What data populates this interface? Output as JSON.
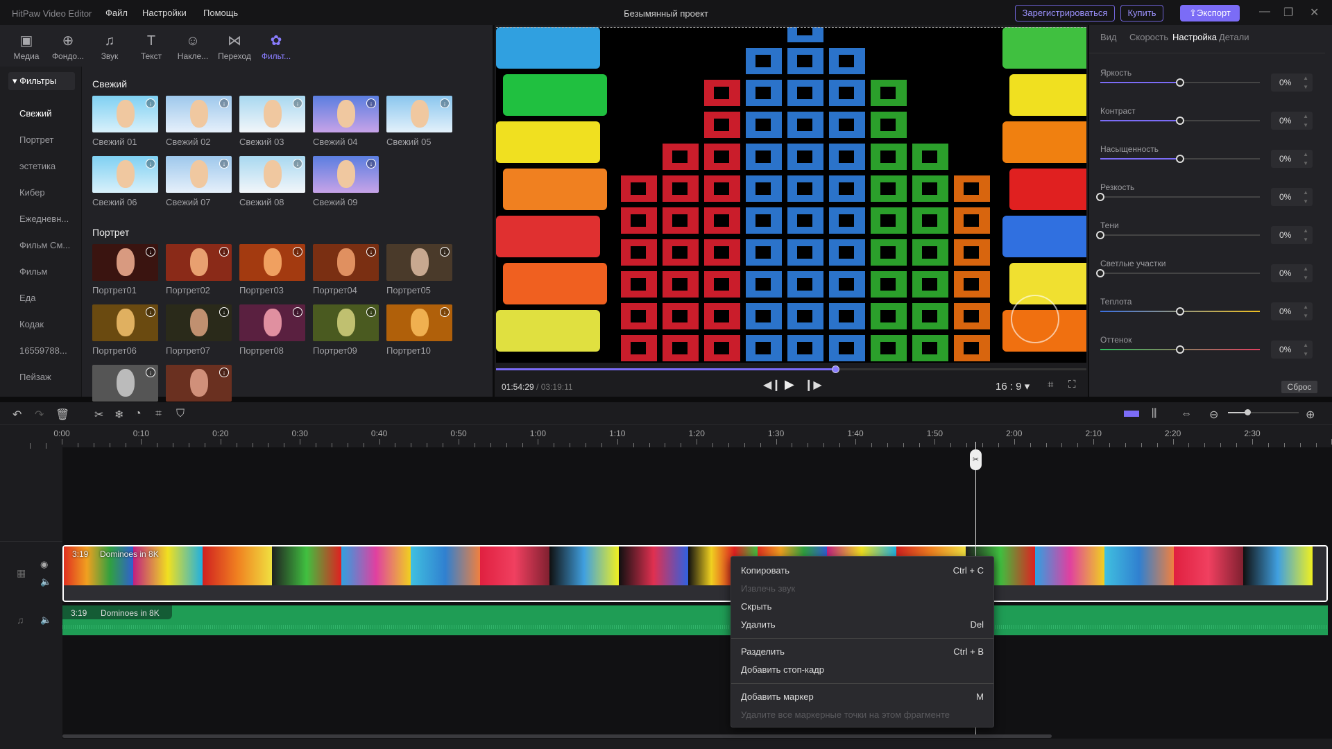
{
  "titlebar": {
    "app": "HitPaw Video Editor",
    "menus": [
      "Файл",
      "Настройки",
      "Помощь"
    ],
    "project": "Безымянный проект",
    "register": "Зарегистрироваться",
    "buy": "Купить",
    "export": "Экспорт",
    "icons": [
      "minimize-icon",
      "restore-icon",
      "close-icon"
    ]
  },
  "toolbar": {
    "tabs": [
      {
        "label": "Медиа",
        "icon": "media-icon"
      },
      {
        "label": "Фондо...",
        "icon": "globe-icon"
      },
      {
        "label": "Звук",
        "icon": "music-icon"
      },
      {
        "label": "Текст",
        "icon": "text-icon"
      },
      {
        "label": "Накле...",
        "icon": "sticker-icon"
      },
      {
        "label": "Переход",
        "icon": "transition-icon"
      },
      {
        "label": "Фильт...",
        "icon": "filter-icon"
      }
    ],
    "active": "Фильт...",
    "accent": "#7b6cf6"
  },
  "sidebar": {
    "header": "Фильтры",
    "items": [
      "Свежий",
      "Портрет",
      "эстетика",
      "Кибер",
      "Ежедневн...",
      "Фильм См...",
      "Фильм",
      "Еда",
      "Кодак",
      "16559788...",
      "Пейзаж"
    ],
    "active": "Свежий"
  },
  "filters": {
    "sections": [
      {
        "title": "Свежий",
        "items": [
          "Свежий 01",
          "Свежий 02",
          "Свежий 03",
          "Свежий 04",
          "Свежий 05",
          "Свежий 06",
          "Свежий 07",
          "Свежий 08",
          "Свежий 09"
        ]
      },
      {
        "title": "Портрет",
        "items": [
          "Портрет01",
          "Портрет02",
          "Портрет03",
          "Портрет04",
          "Портрет05",
          "Портрет06",
          "Портрет07",
          "Портрет08",
          "Портрет09",
          "Портрет10",
          "",
          ""
        ]
      }
    ]
  },
  "preview": {
    "current_time": "01:54:29",
    "separator": " / ",
    "total_time": "03:19:11",
    "progress": 0.575,
    "aspect": "16 : 9"
  },
  "properties": {
    "tabs": [
      "Вид",
      "Скорость",
      "Настройка",
      "Детали"
    ],
    "active": "Настройка",
    "sliders": [
      {
        "label": "Яркость",
        "value": "0%",
        "pos": 0.5
      },
      {
        "label": "Контраст",
        "value": "0%",
        "pos": 0.5
      },
      {
        "label": "Насыщенность",
        "value": "0%",
        "pos": 0.5
      },
      {
        "label": "Резкость",
        "value": "0%",
        "pos": 0
      },
      {
        "label": "Тени",
        "value": "0%",
        "pos": 0
      },
      {
        "label": "Светлые участки",
        "value": "0%",
        "pos": 0
      },
      {
        "label": "Теплота",
        "value": "0%",
        "pos": 0.5
      },
      {
        "label": "Оттенок",
        "value": "0%",
        "pos": 0.5
      }
    ],
    "reset": "Сброс"
  },
  "timeline": {
    "ruler": [
      "0:00",
      "0:10",
      "0:20",
      "0:30",
      "0:40",
      "0:50",
      "1:00",
      "1:10",
      "1:20",
      "1:30",
      "1:40",
      "1:50",
      "2:00",
      "2:10",
      "2:20",
      "2:30"
    ],
    "video_clip": {
      "duration": "3:19",
      "name": "Dominoes in 8K"
    },
    "audio_clip": {
      "duration": "3:19",
      "name": "Dominoes in 8K"
    },
    "audio_color": "#1f9d55"
  },
  "context_menu": {
    "items": [
      {
        "label": "Копировать",
        "shortcut": "Ctrl + C",
        "enabled": true
      },
      {
        "label": "Извлечь звук",
        "shortcut": "",
        "enabled": false
      },
      {
        "label": "Скрыть",
        "shortcut": "",
        "enabled": true
      },
      {
        "label": "Удалить",
        "shortcut": "Del",
        "enabled": true
      },
      {
        "label": "Разделить",
        "shortcut": "Ctrl + B",
        "enabled": true
      },
      {
        "label": "Добавить стоп-кадр",
        "shortcut": "",
        "enabled": true
      },
      {
        "label": "Добавить маркер",
        "shortcut": "M",
        "enabled": true
      },
      {
        "label": "Удалите все маркерные точки на этом фрагменте",
        "shortcut": "",
        "enabled": false
      }
    ]
  }
}
